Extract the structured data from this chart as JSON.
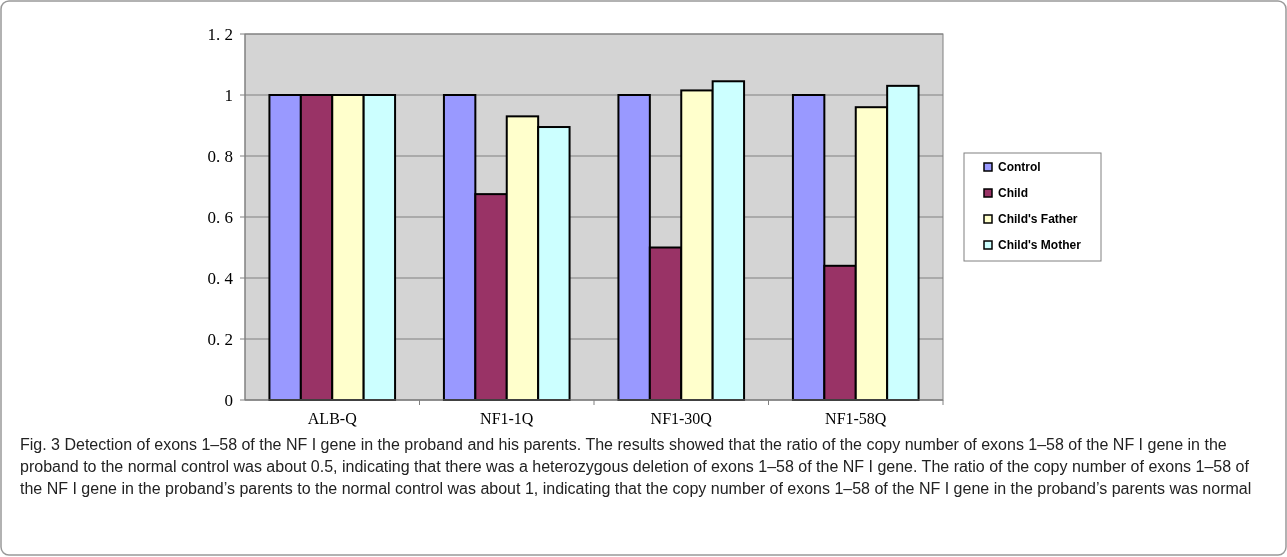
{
  "chart_data": {
    "type": "bar",
    "categories": [
      "ALB-Q",
      "NF1-1Q",
      "NF1-30Q",
      "NF1-58Q"
    ],
    "series": [
      {
        "name": "Control",
        "color": "#9999ff",
        "values": [
          1,
          1,
          1,
          1
        ]
      },
      {
        "name": "Child",
        "color": "#993366",
        "values": [
          1,
          0.675,
          0.5,
          0.44
        ]
      },
      {
        "name": "Child's Father",
        "color": "#ffffcc",
        "values": [
          1,
          0.93,
          1.015,
          0.96
        ]
      },
      {
        "name": "Child's Mother",
        "color": "#ccffff",
        "values": [
          1,
          0.895,
          1.045,
          1.03
        ]
      }
    ],
    "ylim": [
      0,
      1.2
    ],
    "yticks": [
      0,
      {
        "value": 0.2,
        "label": "0. 2"
      },
      {
        "value": 0.4,
        "label": "0. 4"
      },
      {
        "value": 0.6,
        "label": "0. 6"
      },
      {
        "value": 0.8,
        "label": "0. 8"
      },
      1,
      {
        "value": 1.2,
        "label": "1. 2"
      }
    ],
    "grid": "y",
    "legend": "right",
    "annotations": [
      "Fig. 3 Detection of exons 1–58 of the NF I gene in the proband and his parents. The results showed that the ratio of the copy number of exons 1–58 of the NF I gene in the proband to the normal control was about 0.5, indicating that there was a heterozygous deletion of exons 1–58 of the NF I gene. The ratio of the copy number of exons 1–58 of the NF I gene in the proband’s parents to the normal control was about 1, indicating that the copy number of exons 1–58 of the NF I gene in the proband’s parents was normal"
    ]
  }
}
